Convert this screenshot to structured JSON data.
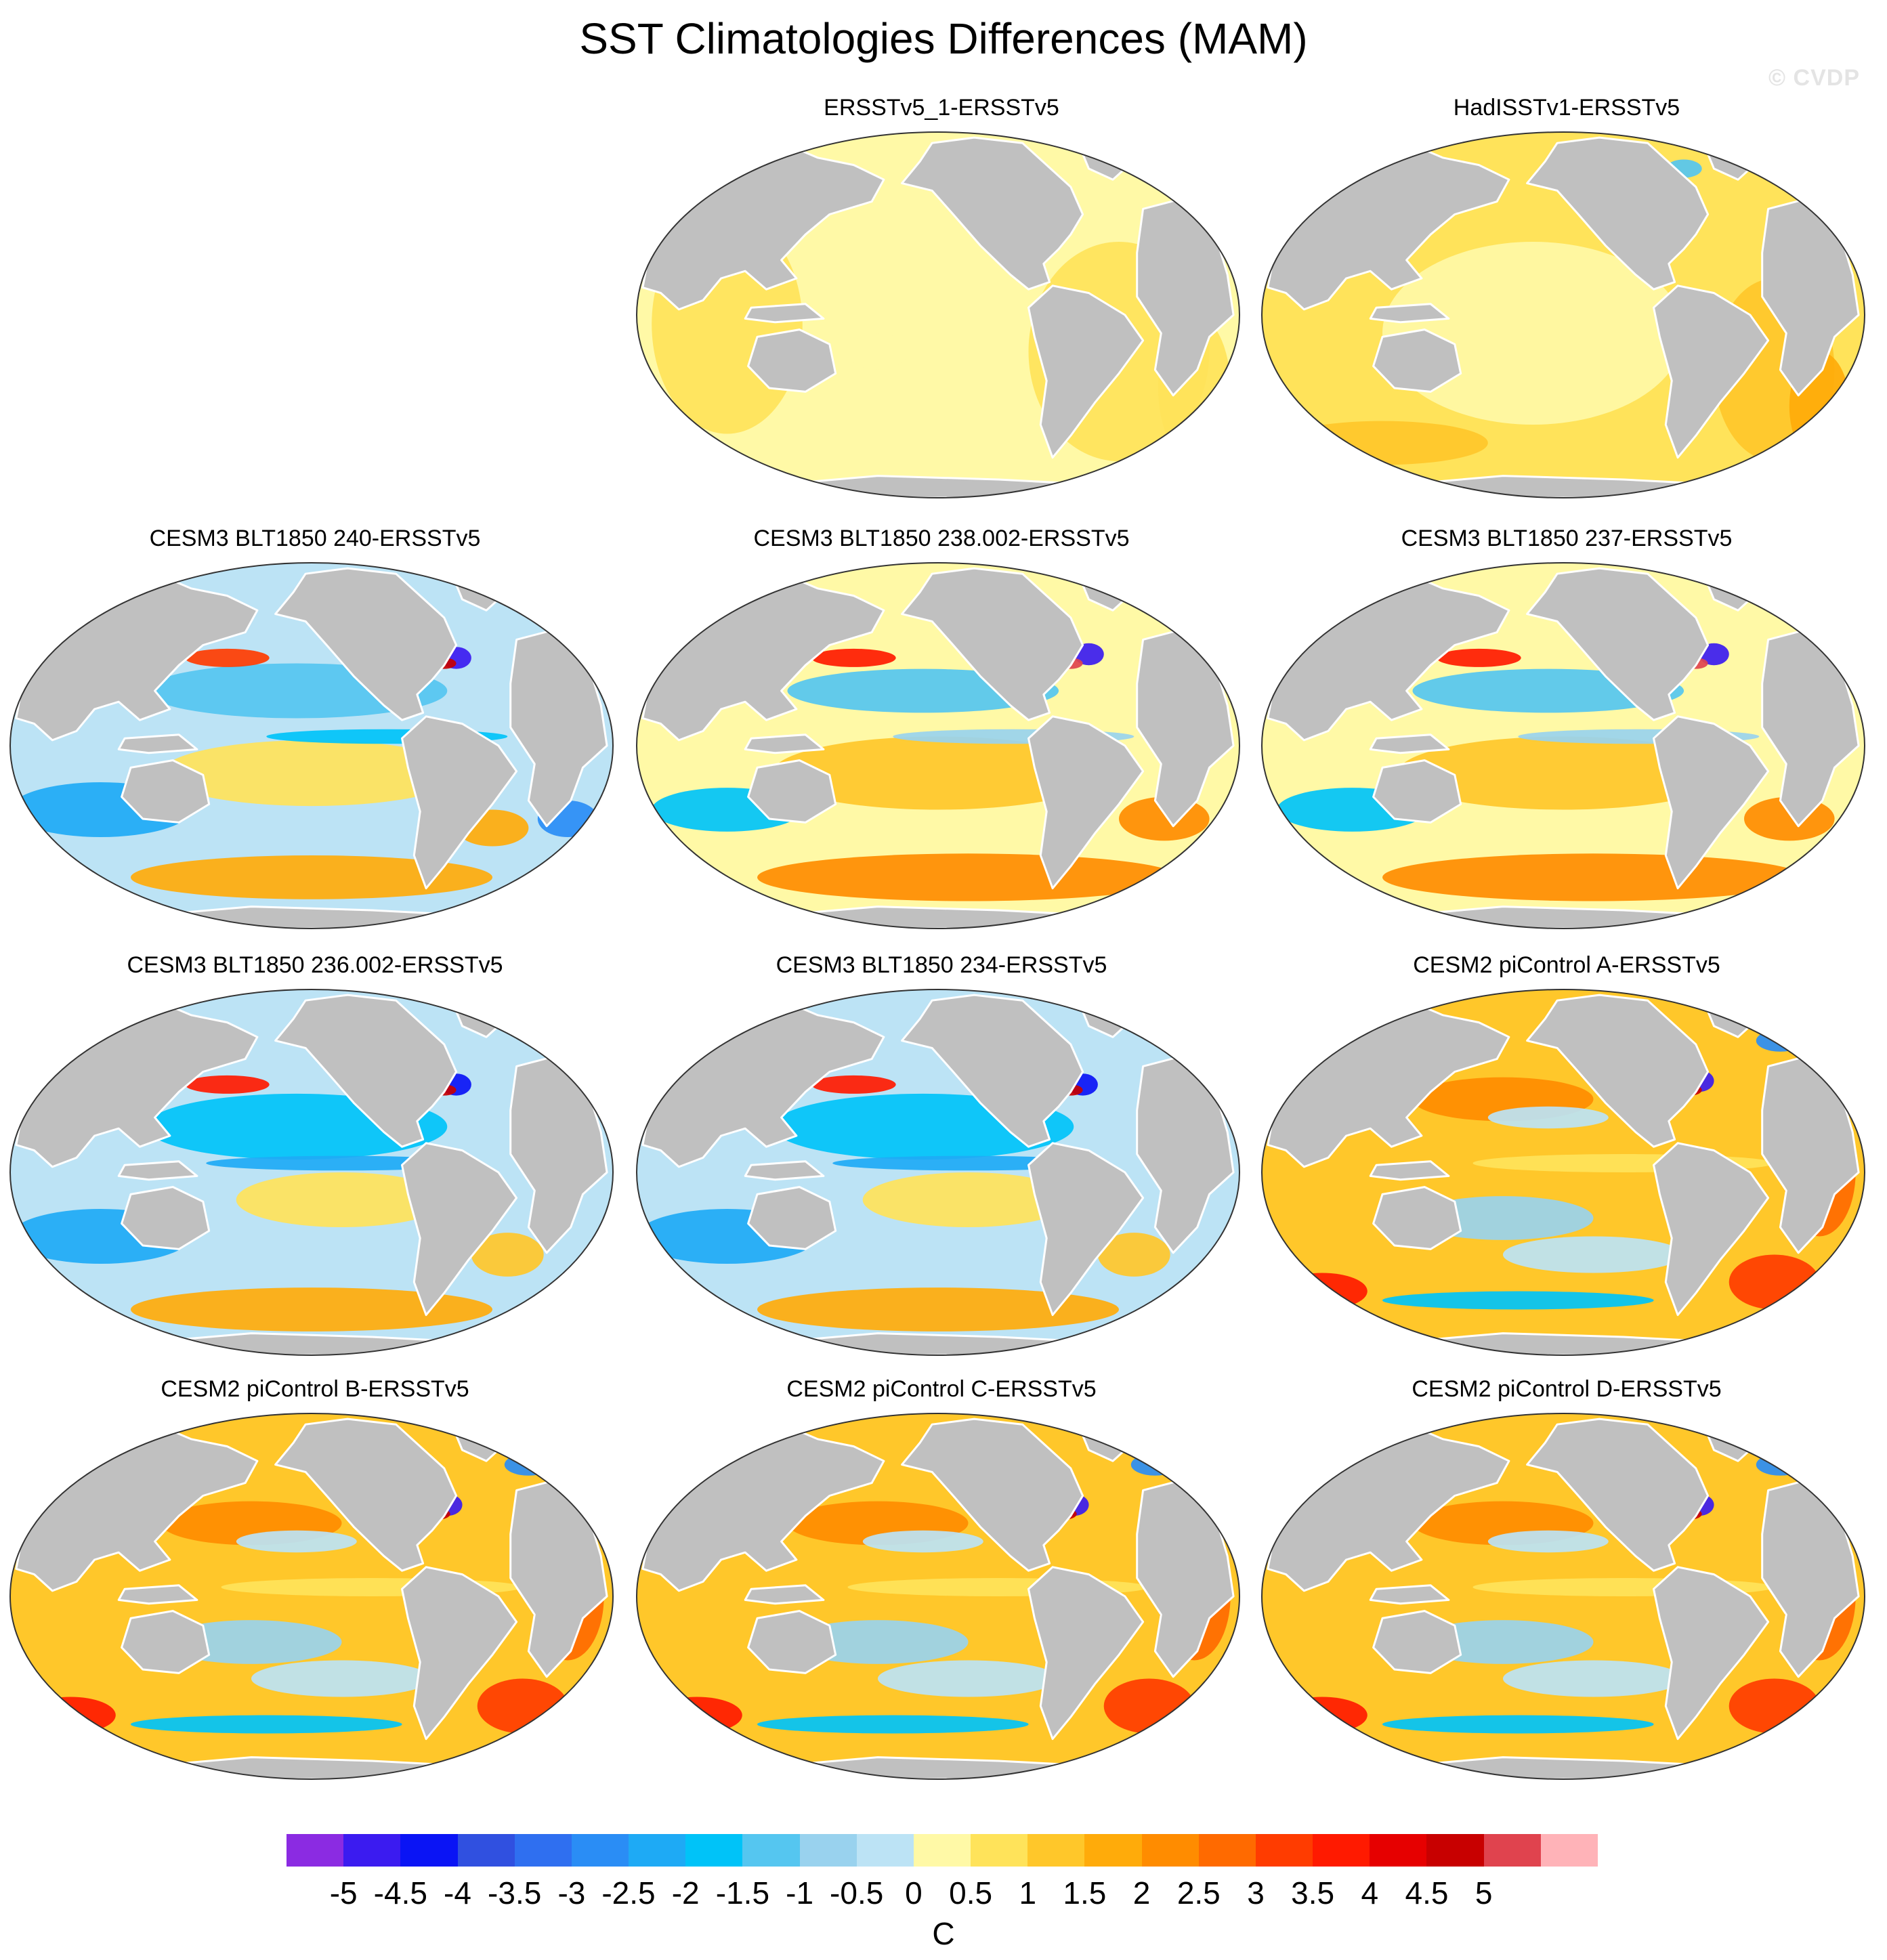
{
  "title": "SST Climatologies Differences (MAM)",
  "watermark": "© CVDP",
  "colors": {
    "land": "#c0c0c0",
    "coast": "#ffffff",
    "border": "#333333"
  },
  "panels": [
    {
      "id": "ersstv5-1",
      "label": "ERSSTv5_1-ERSSTv5",
      "row": 0,
      "col": 1,
      "pattern": "obs1"
    },
    {
      "id": "hadisst",
      "label": "HadISSTv1-ERSSTv5",
      "row": 0,
      "col": 2,
      "pattern": "obs2"
    },
    {
      "id": "blt-240",
      "label": "CESM3 BLT1850 240-ERSSTv5",
      "row": 1,
      "col": 0,
      "pattern": "cesm3a"
    },
    {
      "id": "blt-238",
      "label": "CESM3 BLT1850 238.002-ERSSTv5",
      "row": 1,
      "col": 1,
      "pattern": "cesm3b"
    },
    {
      "id": "blt-237",
      "label": "CESM3 BLT1850 237-ERSSTv5",
      "row": 1,
      "col": 2,
      "pattern": "cesm3b"
    },
    {
      "id": "blt-236",
      "label": "CESM3 BLT1850 236.002-ERSSTv5",
      "row": 2,
      "col": 0,
      "pattern": "cesm3c"
    },
    {
      "id": "blt-234",
      "label": "CESM3 BLT1850 234-ERSSTv5",
      "row": 2,
      "col": 1,
      "pattern": "cesm3c"
    },
    {
      "id": "pic-a",
      "label": "CESM2 piControl A-ERSSTv5",
      "row": 2,
      "col": 2,
      "pattern": "cesm2"
    },
    {
      "id": "pic-b",
      "label": "CESM2 piControl B-ERSSTv5",
      "row": 3,
      "col": 0,
      "pattern": "cesm2"
    },
    {
      "id": "pic-c",
      "label": "CESM2 piControl C-ERSSTv5",
      "row": 3,
      "col": 1,
      "pattern": "cesm2"
    },
    {
      "id": "pic-d",
      "label": "CESM2 piControl D-ERSSTv5",
      "row": 3,
      "col": 2,
      "pattern": "cesm2"
    }
  ],
  "colorbar": {
    "colors": [
      "#8b2be2",
      "#3b1bf0",
      "#0a14f5",
      "#3050e0",
      "#2f6ff0",
      "#2a8df5",
      "#1eaaf5",
      "#00c3f8",
      "#55c6f0",
      "#99d2ee",
      "#bce3f5",
      "#fff9a6",
      "#ffe35a",
      "#ffc72a",
      "#ffab0a",
      "#ff8c00",
      "#ff6a00",
      "#ff3c00",
      "#ff1a00",
      "#e60000",
      "#c80000",
      "#e0434e",
      "#ffb3b8"
    ],
    "ticks": [
      "-5",
      "-4.5",
      "-4",
      "-3.5",
      "-3",
      "-2.5",
      "-2",
      "-1.5",
      "-1",
      "-0.5",
      "0",
      "0.5",
      "1",
      "1.5",
      "2",
      "2.5",
      "3",
      "3.5",
      "4",
      "4.5",
      "5"
    ],
    "units": "C"
  }
}
